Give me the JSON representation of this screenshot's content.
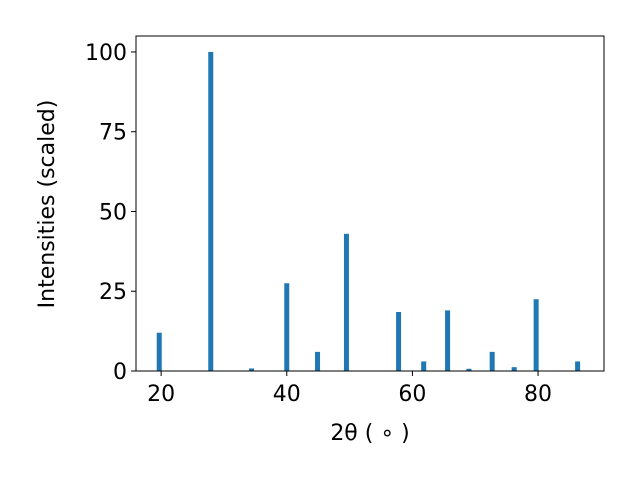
{
  "chart_data": {
    "type": "bar",
    "x": [
      19.7,
      27.9,
      34.4,
      40.0,
      44.9,
      49.5,
      57.8,
      61.8,
      65.6,
      69.0,
      72.7,
      76.2,
      79.7,
      86.3
    ],
    "values": [
      12,
      100,
      0.8,
      27.5,
      6,
      43,
      18.5,
      3,
      19,
      0.7,
      6,
      1.2,
      22.5,
      3
    ],
    "color": "#1f77b4",
    "xlabel": "2θ ( ∘ )",
    "ylabel": "Intensities (scaled)",
    "xlim": [
      16,
      90.5
    ],
    "xticks": [
      20,
      40,
      60,
      80
    ],
    "ylim": [
      0,
      105
    ],
    "yticks": [
      0,
      25,
      50,
      75,
      100
    ],
    "grid": false
  }
}
